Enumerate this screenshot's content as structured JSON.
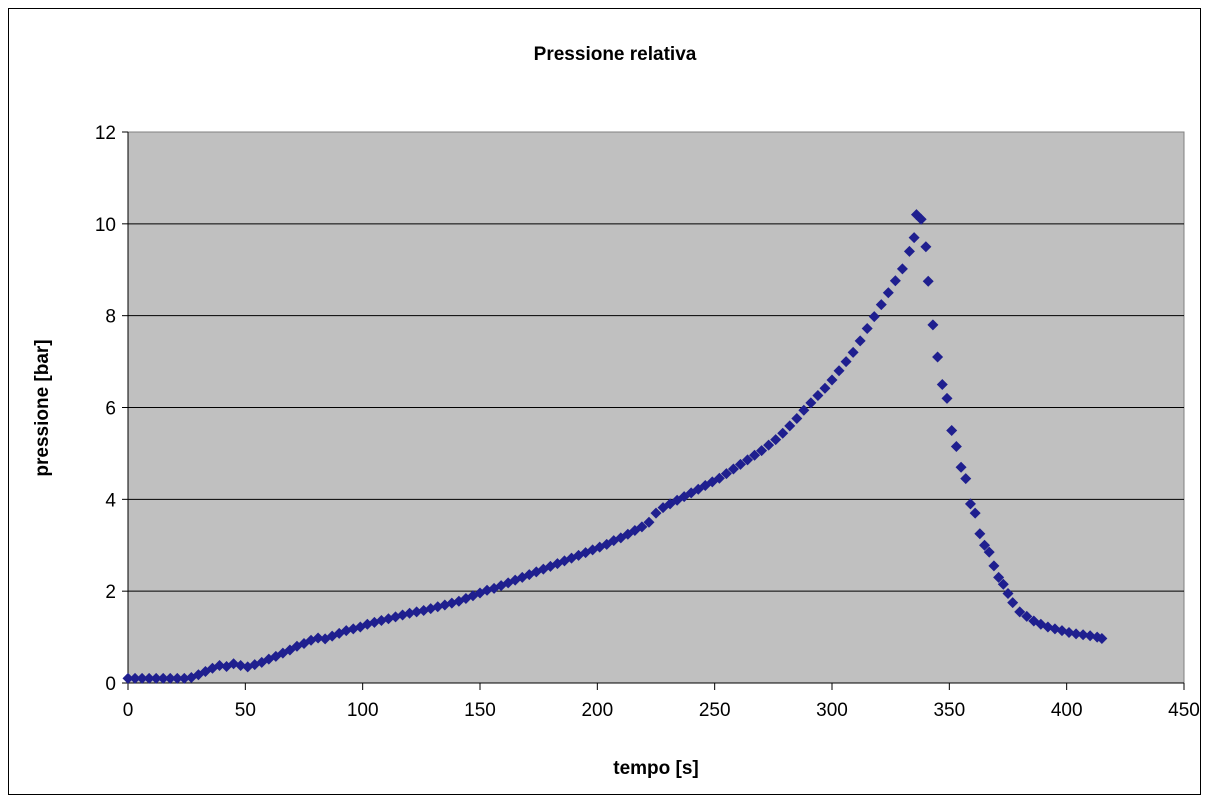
{
  "chart_data": {
    "type": "scatter",
    "title": "Pressione relativa",
    "xlabel": "tempo [s]",
    "ylabel": "pressione [bar]",
    "xlim": [
      0,
      450
    ],
    "ylim": [
      0,
      12
    ],
    "xticks": [
      "0",
      "50",
      "100",
      "150",
      "200",
      "250",
      "300",
      "350",
      "400",
      "450"
    ],
    "yticks": [
      "0",
      "2",
      "4",
      "6",
      "8",
      "10",
      "12"
    ],
    "grid": "horizontal",
    "legend": "none",
    "colors": {
      "plot_background": "#c0c0c0",
      "marker": "#1f1f8f",
      "gridline": "#000000"
    },
    "marker": "diamond",
    "series": [
      {
        "x": [
          0,
          3,
          6,
          9,
          12,
          15,
          18,
          21,
          24,
          27,
          30,
          33,
          36,
          39,
          42,
          45,
          48,
          51,
          54,
          57,
          60,
          63,
          66,
          69,
          72,
          75,
          78,
          81,
          84,
          87,
          90,
          93,
          96,
          99,
          102,
          105,
          108,
          111,
          114,
          117,
          120,
          123,
          126,
          129,
          132,
          135,
          138,
          141,
          144,
          147,
          150,
          153,
          156,
          159,
          162,
          165,
          168,
          171,
          174,
          177,
          180,
          183,
          186,
          189,
          192,
          195,
          198,
          201,
          204,
          207,
          210,
          213,
          216,
          219,
          222,
          225,
          228,
          231,
          234,
          237,
          240,
          243,
          246,
          249,
          252,
          255,
          258,
          261,
          264,
          267,
          270,
          273,
          276,
          279,
          282,
          285,
          288,
          291,
          294,
          297,
          300,
          303,
          306,
          309,
          312,
          315,
          318,
          321,
          324,
          327,
          330,
          333,
          335,
          336,
          338,
          340,
          341,
          343,
          345,
          347,
          349,
          351,
          353,
          355,
          357,
          359,
          361,
          363,
          365,
          367,
          369,
          371,
          373,
          375,
          377,
          380,
          383,
          386,
          389,
          392,
          395,
          398,
          401,
          404,
          407,
          410,
          413,
          415
        ],
        "y": [
          0.1,
          0.1,
          0.1,
          0.1,
          0.1,
          0.1,
          0.1,
          0.1,
          0.1,
          0.12,
          0.18,
          0.25,
          0.32,
          0.38,
          0.36,
          0.42,
          0.38,
          0.35,
          0.4,
          0.45,
          0.52,
          0.58,
          0.65,
          0.72,
          0.8,
          0.86,
          0.93,
          0.98,
          0.96,
          1.02,
          1.08,
          1.14,
          1.18,
          1.22,
          1.28,
          1.32,
          1.36,
          1.4,
          1.44,
          1.48,
          1.52,
          1.55,
          1.58,
          1.62,
          1.66,
          1.7,
          1.74,
          1.78,
          1.84,
          1.9,
          1.96,
          2.02,
          2.06,
          2.12,
          2.18,
          2.24,
          2.3,
          2.36,
          2.42,
          2.48,
          2.54,
          2.6,
          2.66,
          2.72,
          2.78,
          2.84,
          2.9,
          2.96,
          3.02,
          3.1,
          3.16,
          3.24,
          3.32,
          3.4,
          3.5,
          3.7,
          3.82,
          3.9,
          3.98,
          4.06,
          4.14,
          4.22,
          4.3,
          4.38,
          4.46,
          4.56,
          4.66,
          4.76,
          4.86,
          4.96,
          5.06,
          5.18,
          5.3,
          5.44,
          5.6,
          5.76,
          5.94,
          6.1,
          6.26,
          6.42,
          6.6,
          6.8,
          7.0,
          7.2,
          7.45,
          7.72,
          7.98,
          8.24,
          8.5,
          8.76,
          9.02,
          9.4,
          9.7,
          10.2,
          10.1,
          9.5,
          8.75,
          7.8,
          7.1,
          6.5,
          6.2,
          5.5,
          5.15,
          4.7,
          4.45,
          3.9,
          3.7,
          3.25,
          3.0,
          2.85,
          2.55,
          2.3,
          2.15,
          1.95,
          1.75,
          1.55,
          1.45,
          1.35,
          1.28,
          1.22,
          1.18,
          1.14,
          1.1,
          1.07,
          1.05,
          1.03,
          1.0,
          0.97
        ]
      }
    ]
  }
}
